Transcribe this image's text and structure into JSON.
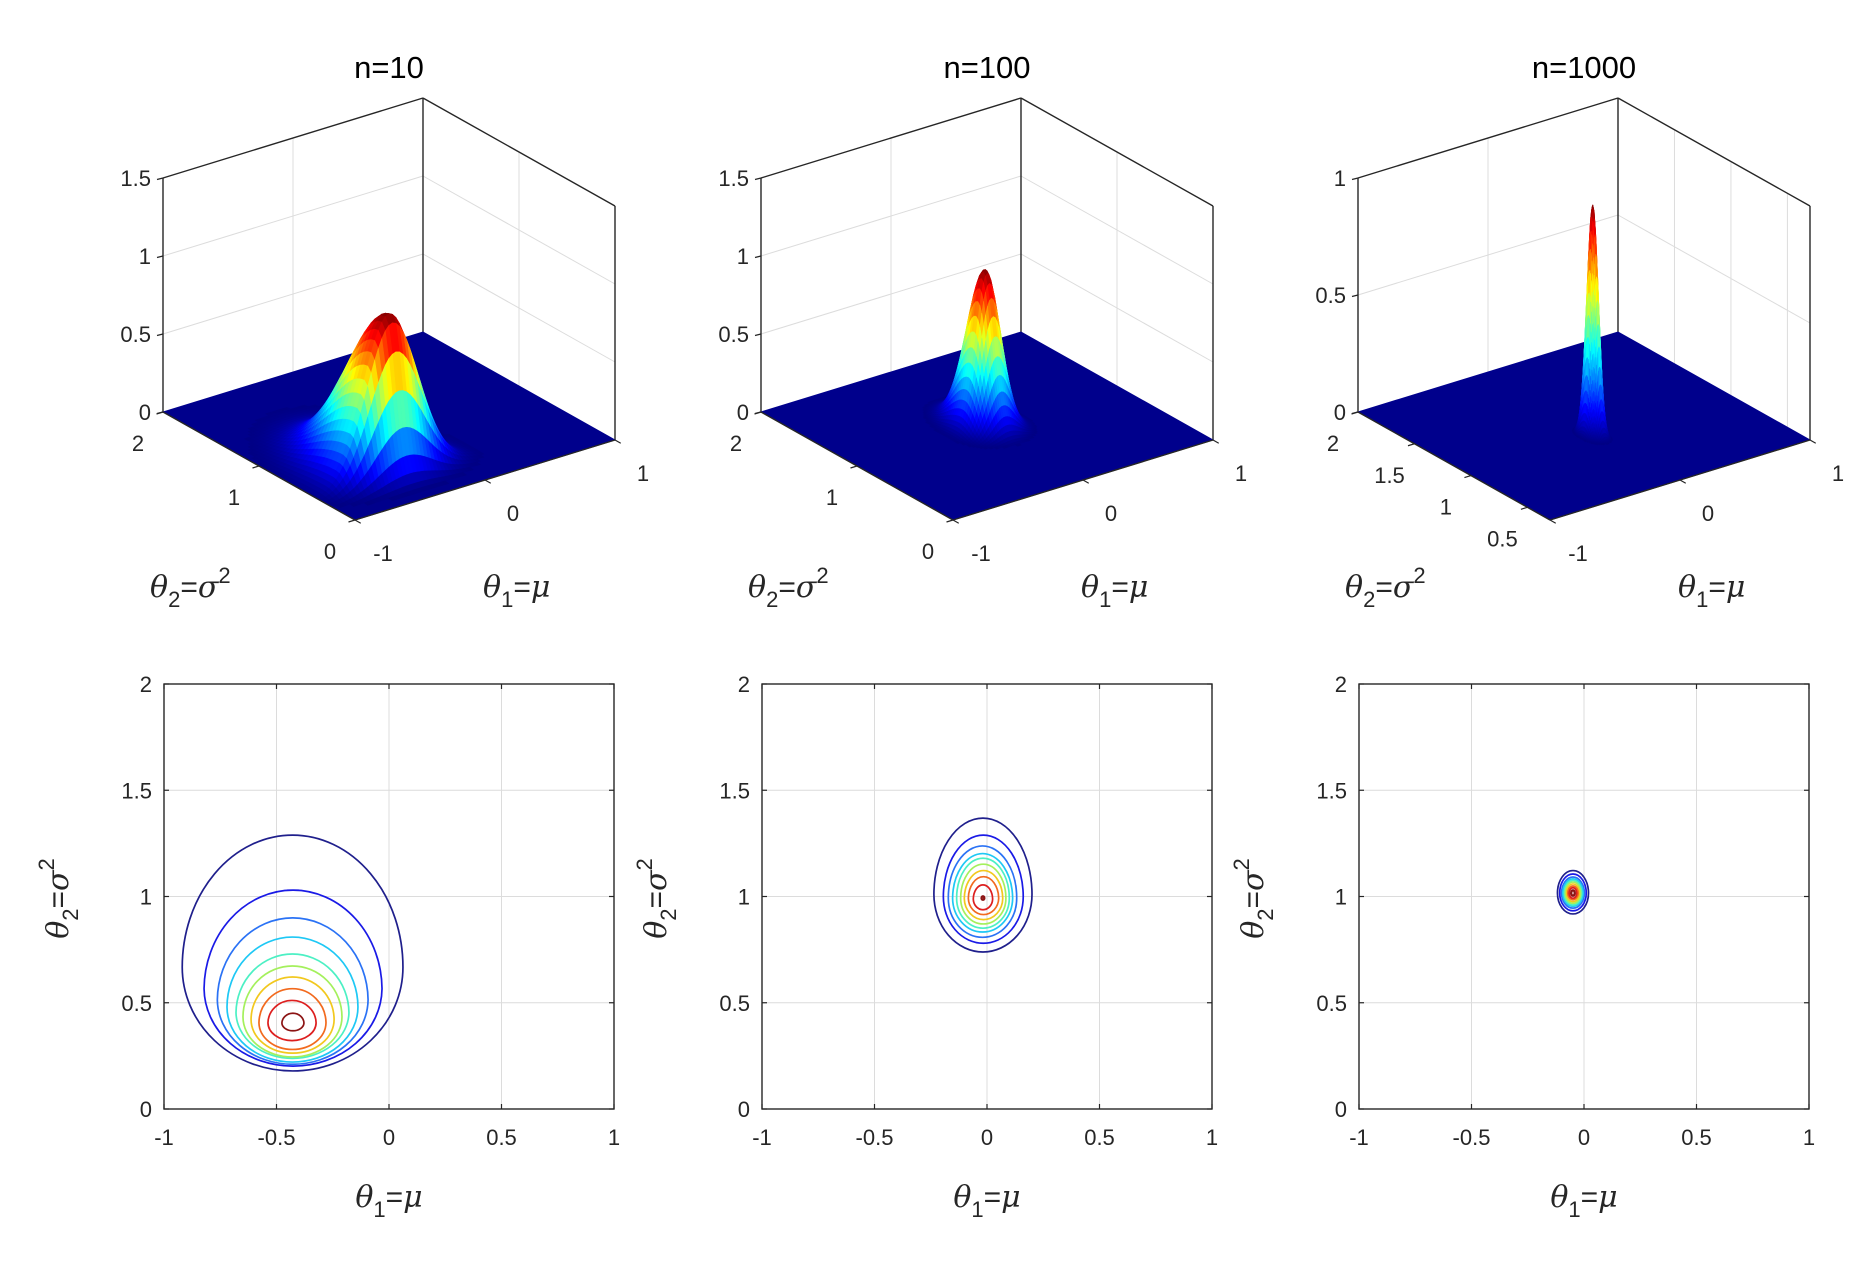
{
  "figure": {
    "description": "Posterior density of (mu, sigma^2) for increasing sample size"
  },
  "chart_data": [
    {
      "type": "surface",
      "title": "n=10",
      "xlabel": {
        "base": "θ",
        "sub": "1",
        "eq": "=",
        "rhs": "μ",
        "sup": ""
      },
      "ylabel": {
        "base": "θ",
        "sub": "2",
        "eq": "=",
        "rhs": "σ",
        "sup": "2"
      },
      "xlim": [
        -1,
        1
      ],
      "ylim": [
        0,
        2
      ],
      "zlim": [
        0,
        1.5
      ],
      "xticks": [
        -1,
        0,
        1
      ],
      "xticklabels": [
        "-1",
        "0",
        "1"
      ],
      "yticks": [
        0,
        1,
        2
      ],
      "yticklabels": [
        "0",
        "1",
        "2"
      ],
      "zticks": [
        0,
        0.5,
        1,
        1.5
      ],
      "zticklabels": [
        "0",
        "0.5",
        "1",
        "1.5"
      ],
      "grid": true,
      "colormap": "jet",
      "floor_color": "#00008c",
      "peak": {
        "theta1": -0.43,
        "theta2": 0.41,
        "z": 1.03
      },
      "spread": {
        "theta1": 0.2,
        "theta2_low": 0.094,
        "theta2_high": 0.36
      }
    },
    {
      "type": "surface",
      "title": "n=100",
      "xlabel": {
        "base": "θ",
        "sub": "1",
        "eq": "=",
        "rhs": "μ",
        "sup": ""
      },
      "ylabel": {
        "base": "θ",
        "sub": "2",
        "eq": "=",
        "rhs": "σ",
        "sup": "2"
      },
      "xlim": [
        -1,
        1
      ],
      "ylim": [
        0,
        2
      ],
      "zlim": [
        0,
        1.5
      ],
      "xticks": [
        -1,
        0,
        1
      ],
      "xticklabels": [
        "-1",
        "0",
        "1"
      ],
      "yticks": [
        0,
        1,
        2
      ],
      "yticklabels": [
        "0",
        "1",
        "2"
      ],
      "zticks": [
        0,
        0.5,
        1,
        1.5
      ],
      "zticklabels": [
        "0",
        "0.5",
        "1",
        "1.5"
      ],
      "grid": true,
      "colormap": "jet",
      "floor_color": "#00008c",
      "peak": {
        "theta1": -0.018,
        "theta2": 0.993,
        "z": 1.01
      },
      "spread": {
        "theta1": 0.089,
        "theta2_low": 0.104,
        "theta2_high": 0.154
      }
    },
    {
      "type": "surface",
      "title": "n=1000",
      "xlabel": {
        "base": "θ",
        "sub": "1",
        "eq": "=",
        "rhs": "μ",
        "sup": ""
      },
      "ylabel": {
        "base": "θ",
        "sub": "2",
        "eq": "=",
        "rhs": "σ",
        "sup": "2"
      },
      "xlim": [
        -1,
        1
      ],
      "ylim": [
        0.3,
        2
      ],
      "zlim": [
        0,
        1
      ],
      "xticks": [
        -1,
        0,
        1
      ],
      "xticklabels": [
        "-1",
        "0",
        "1"
      ],
      "yticks": [
        0.5,
        1,
        1.5,
        2
      ],
      "yticklabels": [
        "0.5",
        "1",
        "1.5",
        "2"
      ],
      "zticks": [
        0,
        0.5,
        1
      ],
      "zticklabels": [
        "0",
        "0.5",
        "1"
      ],
      "grid": true,
      "colormap": "jet",
      "floor_color": "#00008c",
      "peak": {
        "theta1": -0.049,
        "theta2": 1.016,
        "z": 0.99
      },
      "spread": {
        "theta1": 0.028,
        "theta2_low": 0.04,
        "theta2_high": 0.043
      }
    },
    {
      "type": "contour",
      "title": "",
      "xlabel": {
        "base": "θ",
        "sub": "1",
        "eq": "=",
        "rhs": "μ",
        "sup": ""
      },
      "ylabel": {
        "base": "θ",
        "sub": "2",
        "eq": "=",
        "rhs": "σ",
        "sup": "2"
      },
      "xlim": [
        -1,
        1
      ],
      "ylim": [
        0,
        2
      ],
      "xticks": [
        -1,
        -0.5,
        0,
        0.5,
        1
      ],
      "xticklabels": [
        "-1",
        "-0.5",
        "0",
        "0.5",
        "1"
      ],
      "yticks": [
        0,
        0.5,
        1,
        1.5,
        2
      ],
      "yticklabels": [
        "0",
        "0.5",
        "1",
        "1.5",
        "2"
      ],
      "grid": true,
      "center": {
        "theta1": -0.427,
        "theta2": 0.414
      },
      "levels": [
        {
          "color": "#1f1f8c",
          "theta1": [
            -0.919,
            0.062
          ],
          "theta2": [
            0.179,
            1.289
          ]
        },
        {
          "color": "#1a1ae6",
          "theta1": [
            -0.822,
            -0.031
          ],
          "theta2": [
            0.198,
            1.035
          ]
        },
        {
          "color": "#2a72f5",
          "theta1": [
            -0.763,
            -0.093
          ],
          "theta2": [
            0.207,
            0.904
          ]
        },
        {
          "color": "#1ec8f5",
          "theta1": [
            -0.72,
            -0.138
          ],
          "theta2": [
            0.221,
            0.809
          ]
        },
        {
          "color": "#4cf0c4",
          "theta1": [
            -0.68,
            -0.178
          ],
          "theta2": [
            0.235,
            0.733
          ]
        },
        {
          "color": "#a4f05c",
          "theta1": [
            -0.649,
            -0.209
          ],
          "theta2": [
            0.245,
            0.673
          ]
        },
        {
          "color": "#f2c81e",
          "theta1": [
            -0.613,
            -0.244
          ],
          "theta2": [
            0.263,
            0.621
          ]
        },
        {
          "color": "#f26a1e",
          "theta1": [
            -0.578,
            -0.28
          ],
          "theta2": [
            0.278,
            0.569
          ]
        },
        {
          "color": "#dd1f1f",
          "theta1": [
            -0.538,
            -0.324
          ],
          "theta2": [
            0.32,
            0.513
          ]
        },
        {
          "color": "#8c1414",
          "theta1": [
            -0.476,
            -0.378
          ],
          "theta2": [
            0.367,
            0.452
          ]
        }
      ]
    },
    {
      "type": "contour",
      "title": "",
      "xlabel": {
        "base": "θ",
        "sub": "1",
        "eq": "=",
        "rhs": "μ",
        "sup": ""
      },
      "ylabel": {
        "base": "θ",
        "sub": "2",
        "eq": "=",
        "rhs": "σ",
        "sup": "2"
      },
      "xlim": [
        -1,
        1
      ],
      "ylim": [
        0,
        2
      ],
      "xticks": [
        -1,
        -0.5,
        0,
        0.5,
        1
      ],
      "xticklabels": [
        "-1",
        "-0.5",
        "0",
        "0.5",
        "1"
      ],
      "yticks": [
        0,
        0.5,
        1,
        1.5,
        2
      ],
      "yticklabels": [
        "0",
        "0.5",
        "1",
        "1.5",
        "2"
      ],
      "grid": true,
      "center": {
        "theta1": -0.018,
        "theta2": 0.993
      },
      "levels": [
        {
          "color": "#1f1f8c",
          "theta1": [
            -0.236,
            0.2
          ],
          "theta2": [
            0.739,
            1.369
          ]
        },
        {
          "color": "#1a1ae6",
          "theta1": [
            -0.194,
            0.161
          ],
          "theta2": [
            0.78,
            1.289
          ]
        },
        {
          "color": "#2a72f5",
          "theta1": [
            -0.172,
            0.132
          ],
          "theta2": [
            0.808,
            1.238
          ]
        },
        {
          "color": "#1ec8f5",
          "theta1": [
            -0.153,
            0.114
          ],
          "theta2": [
            0.83,
            1.206
          ]
        },
        {
          "color": "#4cf0c4",
          "theta1": [
            -0.135,
            0.099
          ],
          "theta2": [
            0.851,
            1.18
          ]
        },
        {
          "color": "#a4f05c",
          "theta1": [
            -0.117,
            0.084
          ],
          "theta2": [
            0.871,
            1.152
          ]
        },
        {
          "color": "#f2c81e",
          "theta1": [
            -0.101,
            0.07
          ],
          "theta2": [
            0.889,
            1.125
          ]
        },
        {
          "color": "#f26a1e",
          "theta1": [
            -0.083,
            0.052
          ],
          "theta2": [
            0.913,
            1.096
          ]
        },
        {
          "color": "#dd1f1f",
          "theta1": [
            -0.061,
            0.025
          ],
          "theta2": [
            0.936,
            1.057
          ]
        },
        {
          "color": "#8c1414",
          "theta1": [
            -0.024,
            -0.012
          ],
          "theta2": [
            0.985,
            1.001
          ]
        }
      ]
    },
    {
      "type": "contour",
      "title": "",
      "xlabel": {
        "base": "θ",
        "sub": "1",
        "eq": "=",
        "rhs": "μ",
        "sup": ""
      },
      "ylabel": {
        "base": "θ",
        "sub": "2",
        "eq": "=",
        "rhs": "σ",
        "sup": "2"
      },
      "xlim": [
        -1,
        1
      ],
      "ylim": [
        0,
        2
      ],
      "xticks": [
        -1,
        -0.5,
        0,
        0.5,
        1
      ],
      "xticklabels": [
        "-1",
        "-0.5",
        "0",
        "0.5",
        "1"
      ],
      "yticks": [
        0,
        0.5,
        1,
        1.5,
        2
      ],
      "yticklabels": [
        "0",
        "0.5",
        "1",
        "1.5",
        "2"
      ],
      "grid": true,
      "center": {
        "theta1": -0.049,
        "theta2": 1.016
      },
      "levels": [
        {
          "color": "#1f1f8c",
          "theta1": [
            -0.118,
            0.02
          ],
          "theta2": [
            0.918,
            1.122
          ]
        },
        {
          "color": "#1a1ae6",
          "theta1": [
            -0.108,
            0.01
          ],
          "theta2": [
            0.933,
            1.106
          ]
        },
        {
          "color": "#2a72f5",
          "theta1": [
            -0.1,
            0.002
          ],
          "theta2": [
            0.943,
            1.094
          ]
        },
        {
          "color": "#1ec8f5",
          "theta1": [
            -0.094,
            -0.004
          ],
          "theta2": [
            0.952,
            1.085
          ]
        },
        {
          "color": "#4cf0c4",
          "theta1": [
            -0.088,
            -0.01
          ],
          "theta2": [
            0.96,
            1.076
          ]
        },
        {
          "color": "#a4f05c",
          "theta1": [
            -0.083,
            -0.015
          ],
          "theta2": [
            0.968,
            1.068
          ]
        },
        {
          "color": "#f2c81e",
          "theta1": [
            -0.077,
            -0.021
          ],
          "theta2": [
            0.976,
            1.059
          ]
        },
        {
          "color": "#f26a1e",
          "theta1": [
            -0.072,
            -0.026
          ],
          "theta2": [
            0.984,
            1.051
          ]
        },
        {
          "color": "#dd1f1f",
          "theta1": [
            -0.066,
            -0.032
          ],
          "theta2": [
            0.992,
            1.041
          ]
        },
        {
          "color": "#8c1414",
          "theta1": [
            -0.057,
            -0.041
          ],
          "theta2": [
            1.004,
            1.029
          ]
        }
      ]
    }
  ]
}
